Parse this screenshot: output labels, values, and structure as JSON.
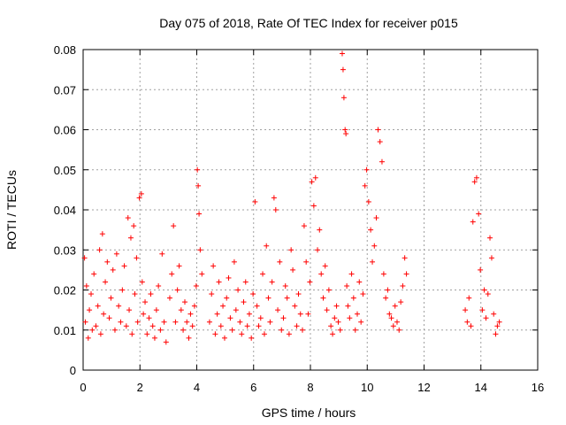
{
  "chart_data": {
    "type": "scatter",
    "title": "Day 075 of 2018, Rate Of TEC Index for receiver p015",
    "xlabel": "GPS time / hours",
    "ylabel": "ROTI / TECUs",
    "xlim": [
      0,
      16
    ],
    "ylim": [
      0,
      0.08
    ],
    "x_ticks": [
      "0",
      "2",
      "4",
      "6",
      "8",
      "10",
      "12",
      "14",
      "16"
    ],
    "y_ticks": [
      "0",
      "0.01",
      "0.02",
      "0.03",
      "0.04",
      "0.05",
      "0.06",
      "0.07",
      "0.08"
    ],
    "grid": true,
    "marker": "+",
    "color": "#ff0000",
    "series": [
      {
        "name": "ROTI",
        "x": [
          0.05,
          0.08,
          0.12,
          0.18,
          0.22,
          0.28,
          0.32,
          0.38,
          0.45,
          0.52,
          0.58,
          0.62,
          0.68,
          0.72,
          0.78,
          0.85,
          0.92,
          0.98,
          1.05,
          1.12,
          1.18,
          1.25,
          1.32,
          1.38,
          1.45,
          1.52,
          1.58,
          1.62,
          1.68,
          1.72,
          1.78,
          1.82,
          1.88,
          1.92,
          1.98,
          2.05,
          2.08,
          2.12,
          2.18,
          2.25,
          2.32,
          2.38,
          2.45,
          2.52,
          2.58,
          2.65,
          2.72,
          2.78,
          2.85,
          2.92,
          3.05,
          3.12,
          3.18,
          3.25,
          3.32,
          3.38,
          3.45,
          3.52,
          3.58,
          3.65,
          3.72,
          3.78,
          3.85,
          3.92,
          3.98,
          4.02,
          4.05,
          4.08,
          4.12,
          4.18,
          4.45,
          4.52,
          4.58,
          4.65,
          4.72,
          4.78,
          4.85,
          4.92,
          4.98,
          5.05,
          5.12,
          5.18,
          5.25,
          5.32,
          5.38,
          5.45,
          5.52,
          5.58,
          5.65,
          5.72,
          5.78,
          5.85,
          5.92,
          5.98,
          6.05,
          6.12,
          6.18,
          6.25,
          6.32,
          6.38,
          6.45,
          6.52,
          6.58,
          6.65,
          6.72,
          6.78,
          6.85,
          6.92,
          6.98,
          7.05,
          7.12,
          7.18,
          7.25,
          7.32,
          7.38,
          7.45,
          7.52,
          7.58,
          7.65,
          7.72,
          7.78,
          7.85,
          7.92,
          7.98,
          8.05,
          8.12,
          8.18,
          8.25,
          8.32,
          8.38,
          8.45,
          8.52,
          8.58,
          8.65,
          8.72,
          8.78,
          8.85,
          8.92,
          8.98,
          9.05,
          9.12,
          9.15,
          9.18,
          9.22,
          9.25,
          9.28,
          9.32,
          9.38,
          9.45,
          9.52,
          9.58,
          9.65,
          9.72,
          9.78,
          9.85,
          9.92,
          9.98,
          10.05,
          10.12,
          10.18,
          10.25,
          10.32,
          10.38,
          10.45,
          10.52,
          10.58,
          10.65,
          10.72,
          10.78,
          10.85,
          10.92,
          10.98,
          11.05,
          11.12,
          11.18,
          11.25,
          11.32,
          11.38,
          13.45,
          13.52,
          13.58,
          13.65,
          13.72,
          13.78,
          13.85,
          13.92,
          13.98,
          14.05,
          14.12,
          14.18,
          14.25,
          14.32,
          14.38,
          14.45,
          14.52,
          14.58,
          14.65
        ],
        "y": [
          0.028,
          0.012,
          0.021,
          0.008,
          0.015,
          0.019,
          0.01,
          0.024,
          0.011,
          0.016,
          0.03,
          0.009,
          0.034,
          0.014,
          0.022,
          0.027,
          0.013,
          0.018,
          0.025,
          0.01,
          0.029,
          0.016,
          0.012,
          0.02,
          0.026,
          0.011,
          0.038,
          0.015,
          0.033,
          0.009,
          0.036,
          0.019,
          0.028,
          0.012,
          0.043,
          0.044,
          0.022,
          0.014,
          0.017,
          0.009,
          0.013,
          0.019,
          0.011,
          0.008,
          0.015,
          0.021,
          0.01,
          0.029,
          0.012,
          0.007,
          0.018,
          0.024,
          0.036,
          0.012,
          0.02,
          0.026,
          0.015,
          0.01,
          0.017,
          0.012,
          0.008,
          0.014,
          0.011,
          0.016,
          0.021,
          0.05,
          0.046,
          0.039,
          0.03,
          0.024,
          0.012,
          0.019,
          0.026,
          0.009,
          0.014,
          0.022,
          0.011,
          0.016,
          0.008,
          0.018,
          0.023,
          0.013,
          0.01,
          0.027,
          0.015,
          0.02,
          0.012,
          0.009,
          0.017,
          0.022,
          0.011,
          0.014,
          0.008,
          0.019,
          0.042,
          0.016,
          0.011,
          0.013,
          0.024,
          0.009,
          0.031,
          0.018,
          0.012,
          0.022,
          0.043,
          0.04,
          0.015,
          0.027,
          0.01,
          0.013,
          0.021,
          0.018,
          0.009,
          0.03,
          0.025,
          0.016,
          0.011,
          0.019,
          0.014,
          0.01,
          0.036,
          0.027,
          0.014,
          0.022,
          0.047,
          0.041,
          0.048,
          0.03,
          0.035,
          0.024,
          0.018,
          0.026,
          0.015,
          0.02,
          0.011,
          0.009,
          0.013,
          0.016,
          0.012,
          0.01,
          0.079,
          0.075,
          0.068,
          0.06,
          0.059,
          0.021,
          0.016,
          0.013,
          0.024,
          0.018,
          0.01,
          0.014,
          0.022,
          0.012,
          0.019,
          0.046,
          0.05,
          0.042,
          0.035,
          0.027,
          0.031,
          0.038,
          0.06,
          0.057,
          0.052,
          0.024,
          0.018,
          0.02,
          0.014,
          0.013,
          0.011,
          0.016,
          0.012,
          0.01,
          0.017,
          0.021,
          0.028,
          0.024,
          0.015,
          0.012,
          0.018,
          0.011,
          0.037,
          0.047,
          0.048,
          0.039,
          0.025,
          0.015,
          0.02,
          0.013,
          0.019,
          0.033,
          0.028,
          0.014,
          0.009,
          0.011,
          0.012
        ]
      }
    ]
  }
}
